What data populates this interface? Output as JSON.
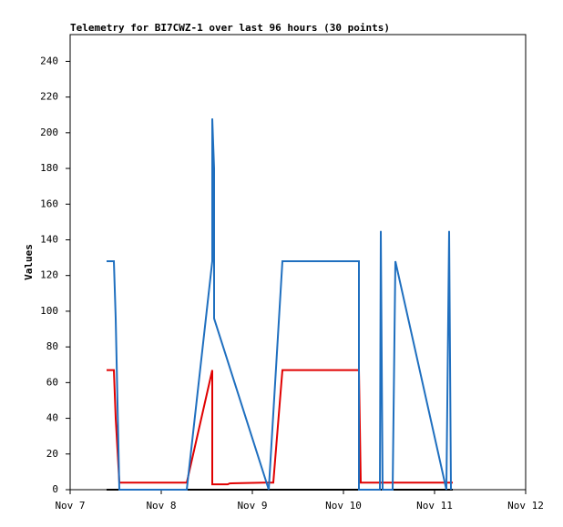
{
  "chart_data": {
    "type": "line",
    "title": "Telemetry for BI7CWZ-1 over last 96 hours (30 points)",
    "y_label": "Values",
    "xlim": [
      7,
      12
    ],
    "xticks": [
      {
        "value": 7,
        "label": "Nov 7"
      },
      {
        "value": 8,
        "label": "Nov 8"
      },
      {
        "value": 9,
        "label": "Nov 9"
      },
      {
        "value": 10,
        "label": "Nov 10"
      },
      {
        "value": 11,
        "label": "Nov 11"
      },
      {
        "value": 12,
        "label": "Nov 12"
      }
    ],
    "ylim": [
      0,
      255
    ],
    "yticks": [
      0,
      20,
      40,
      60,
      80,
      100,
      120,
      140,
      160,
      180,
      200,
      220,
      240
    ],
    "series": [
      {
        "color": "#000000",
        "x": [
          7.4,
          11.2
        ],
        "values": [
          0,
          0
        ]
      },
      {
        "color": "#e00000",
        "x": [
          7.4,
          7.48,
          7.5,
          7.54,
          8.28,
          8.56,
          8.56,
          8.73,
          8.75,
          9.13,
          9.23,
          9.33,
          10.17,
          10.19,
          11.2
        ],
        "values": [
          67,
          67,
          40,
          4,
          4,
          67,
          3,
          3,
          3.5,
          4,
          4,
          67,
          67,
          4,
          4
        ]
      },
      {
        "color": "#1f6fbf",
        "x": [
          7.4,
          7.48,
          7.5,
          7.54,
          8.28,
          8.56,
          8.56,
          8.58,
          8.58,
          9.18,
          9.33,
          10.17,
          10.17,
          10.4,
          10.41,
          10.43,
          10.54,
          10.57,
          11.13,
          11.16,
          11.18
        ],
        "values": [
          128,
          128,
          96,
          0,
          0,
          128,
          208,
          180,
          96,
          0,
          128,
          128,
          0,
          0,
          145,
          0,
          0,
          128,
          0,
          145,
          0
        ]
      }
    ]
  }
}
